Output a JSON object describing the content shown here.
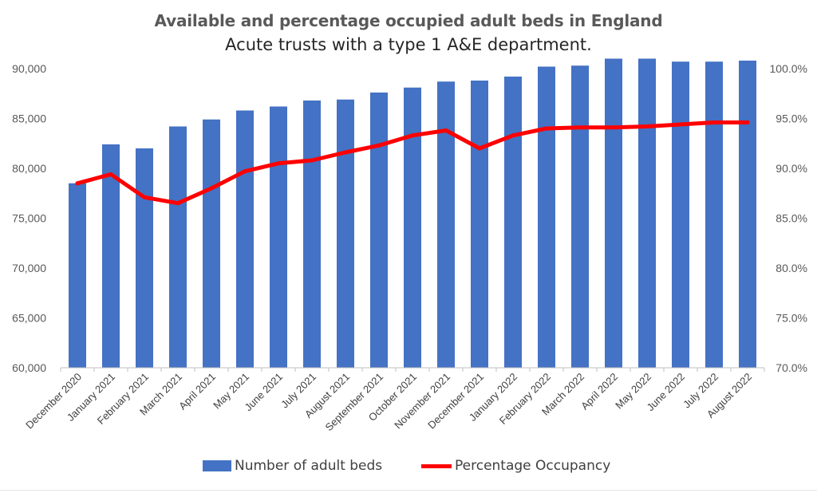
{
  "chart_data": {
    "type": "bar",
    "title": "Available and percentage occupied adult beds in England",
    "subtitle": "Acute trusts with a type 1 A&E department.",
    "categories": [
      "December 2020",
      "January 2021",
      "February 2021",
      "March 2021",
      "April 2021",
      "May 2021",
      "June 2021",
      "July 2021",
      "August 2021",
      "September 2021",
      "October 2021",
      "November 2021",
      "December 2021",
      "January 2022",
      "February 2022",
      "March 2022",
      "April 2022",
      "May 2022",
      "June 2022",
      "July 2022",
      "August 2022"
    ],
    "series": [
      {
        "name": "Number of adult beds",
        "type": "bar",
        "axis": "left",
        "color": "#4472c4",
        "values": [
          78500,
          82400,
          82000,
          84200,
          84900,
          85800,
          86200,
          86800,
          86900,
          87600,
          88100,
          88700,
          88800,
          89200,
          90200,
          90300,
          91000,
          91000,
          90700,
          90700,
          90800
        ]
      },
      {
        "name": "Percentage Occupancy",
        "type": "line",
        "axis": "right",
        "color": "#ff0000",
        "values": [
          88.5,
          89.4,
          87.1,
          86.5,
          88.0,
          89.7,
          90.5,
          90.8,
          91.6,
          92.3,
          93.3,
          93.8,
          92.0,
          93.3,
          94.0,
          94.1,
          94.1,
          94.2,
          94.4,
          94.6,
          94.6
        ]
      }
    ],
    "y_left": {
      "min": 60000,
      "max": 90000,
      "ticks": [
        "60,000",
        "65,000",
        "70,000",
        "75,000",
        "80,000",
        "85,000",
        "90,000"
      ],
      "tick_values": [
        60000,
        65000,
        70000,
        75000,
        80000,
        85000,
        90000
      ]
    },
    "y_right": {
      "min": 70,
      "max": 100,
      "ticks": [
        "70.0%",
        "75.0%",
        "80.0%",
        "85.0%",
        "90.0%",
        "95.0%",
        "100.0%"
      ],
      "tick_values": [
        70,
        75,
        80,
        85,
        90,
        95,
        100
      ]
    },
    "grid": false,
    "legend_position": "bottom"
  }
}
